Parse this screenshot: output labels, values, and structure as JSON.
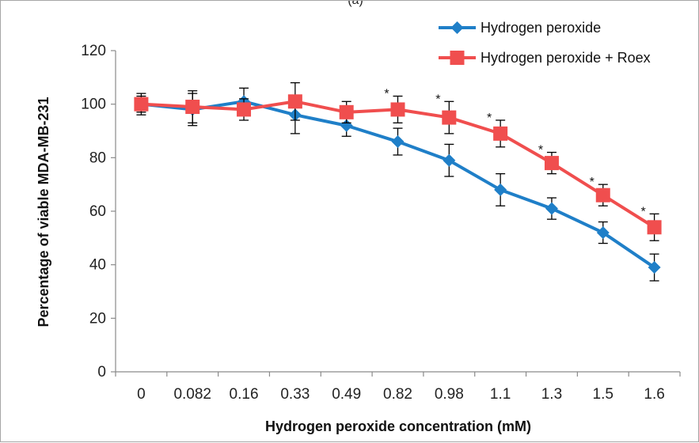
{
  "chart_data": {
    "type": "line",
    "panel_label": "(a)",
    "xlabel": "Hydrogen peroxide concentration (mM)",
    "ylabel": "Percentage of viable MDA-MB-231",
    "categories": [
      "0",
      "0.082",
      "0.16",
      "0.33",
      "0.49",
      "0.82",
      "0.98",
      "1.1",
      "1.3",
      "1.5",
      "1.6"
    ],
    "ylim": [
      0,
      120
    ],
    "yticks": [
      0,
      20,
      40,
      60,
      80,
      100,
      120
    ],
    "grid": false,
    "legend_position": "top-right",
    "series": [
      {
        "name": "Hydrogen peroxide",
        "color": "#1f7fc8",
        "marker": "diamond",
        "values": [
          100,
          98,
          101,
          96,
          92,
          86,
          79,
          68,
          61,
          52,
          39
        ],
        "errors": [
          4,
          6,
          5,
          7,
          4,
          5,
          6,
          6,
          4,
          4,
          5
        ]
      },
      {
        "name": "Hydrogen peroxide + Roex",
        "color": "#f04e4e",
        "marker": "square",
        "values": [
          100,
          99,
          98,
          101,
          97,
          98,
          95,
          89,
          78,
          66,
          54
        ],
        "errors": [
          3,
          6,
          4,
          7,
          4,
          5,
          6,
          5,
          4,
          4,
          5
        ]
      }
    ],
    "annotations": [
      {
        "category": "0.82",
        "text": "*"
      },
      {
        "category": "0.98",
        "text": "*"
      },
      {
        "category": "1.1",
        "text": "*"
      },
      {
        "category": "1.3",
        "text": "*"
      },
      {
        "category": "1.5",
        "text": "*"
      },
      {
        "category": "1.6",
        "text": "*"
      }
    ]
  }
}
